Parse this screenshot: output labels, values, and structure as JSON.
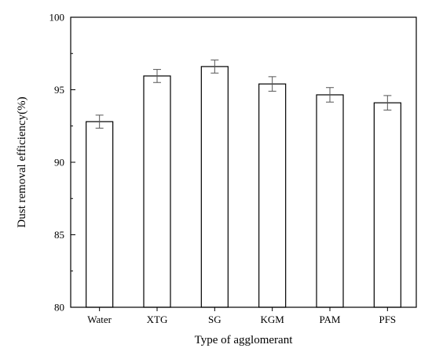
{
  "chart_data": {
    "type": "bar",
    "title": "",
    "xlabel": "Type of agglomerant",
    "ylabel": "Dust removal efficiency(%)",
    "categories": [
      "Water",
      "XTG",
      "SG",
      "KGM",
      "PAM",
      "PFS"
    ],
    "values": [
      92.8,
      95.95,
      96.6,
      95.4,
      94.65,
      94.1
    ],
    "errors": [
      0.45,
      0.45,
      0.45,
      0.5,
      0.5,
      0.5
    ],
    "ylim": [
      80,
      100
    ],
    "yticks": [
      80,
      85,
      90,
      95,
      100
    ],
    "grid": false,
    "legend": "none",
    "bar_fill": "#ffffff",
    "bar_stroke": "#000000",
    "errorbar_color": "#555555"
  }
}
